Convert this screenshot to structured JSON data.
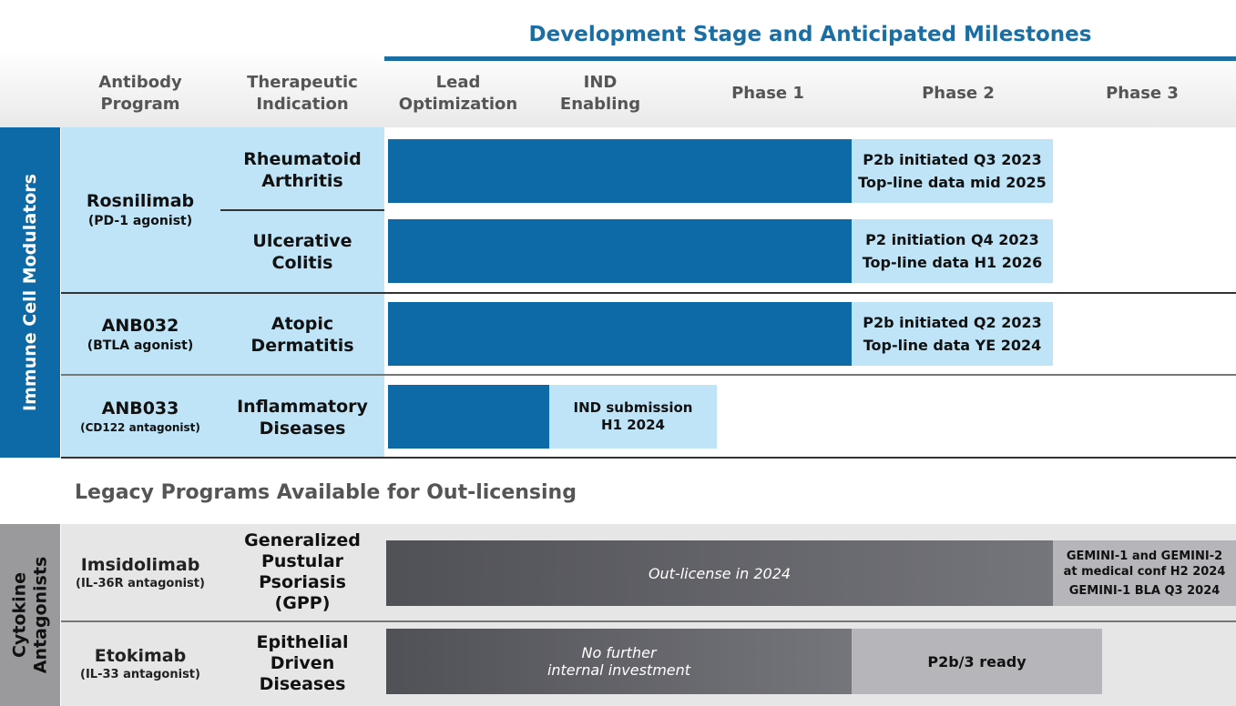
{
  "header": {
    "title": "Development Stage and Anticipated Milestones",
    "columns": {
      "program": [
        "Antibody",
        "Program"
      ],
      "indication": [
        "Therapeutic",
        "Indication"
      ],
      "lead": [
        "Lead",
        "Optimization"
      ],
      "ind": [
        "IND",
        "Enabling"
      ],
      "phase1": "Phase 1",
      "phase2": "Phase 2",
      "phase3": "Phase 3"
    }
  },
  "immune": {
    "category": "Immune Cell Modulators",
    "programs": [
      {
        "name": "Rosnilimab",
        "sub": "(PD-1 agonist)",
        "indications": [
          {
            "label": [
              "Rheumatoid",
              "Arthritis"
            ],
            "milestone": [
              "P2b initiated Q3 2023",
              "Top-line data mid 2025"
            ]
          },
          {
            "label": [
              "Ulcerative",
              "Colitis"
            ],
            "milestone": [
              "P2 initiation Q4 2023",
              "Top-line data H1 2026"
            ]
          }
        ]
      },
      {
        "name": "ANB032",
        "sub": "(BTLA agonist)",
        "indications": [
          {
            "label": [
              "Atopic",
              "Dermatitis"
            ],
            "milestone": [
              "P2b initiated Q2 2023",
              "Top-line data YE 2024"
            ]
          }
        ]
      },
      {
        "name": "ANB033",
        "sub": "(CD122 antagonist)",
        "indications": [
          {
            "label": [
              "Inflammatory",
              "Diseases"
            ],
            "milestone": [
              "IND submission",
              "H1 2024"
            ]
          }
        ]
      }
    ]
  },
  "legacy": {
    "title": "Legacy Programs Available for Out-licensing",
    "category": [
      "Cytokine",
      "Antagonists"
    ],
    "programs": [
      {
        "name": "Imsidolimab",
        "sub": "(IL-36R antagonist)",
        "indication": [
          "Generalized",
          "Pustular",
          "Psoriasis",
          "(GPP)"
        ],
        "bar_text": "Out-license in 2024",
        "milestone": [
          "GEMINI-1 and GEMINI-2",
          "at medical conf H2 2024",
          "GEMINI-1 BLA Q3 2024"
        ]
      },
      {
        "name": "Etokimab",
        "sub": "(IL-33 antagonist)",
        "indication": [
          "Epithelial",
          "Driven",
          "Diseases"
        ],
        "bar_text": [
          "No further",
          "internal investment"
        ],
        "milestone": "P2b/3 ready"
      }
    ]
  },
  "colors": {
    "brand_blue": "#0e6aa6",
    "title_blue": "#1a6ea3",
    "light_blue": "#bfe4f8",
    "legacy_grey": "#e6e6e6"
  }
}
